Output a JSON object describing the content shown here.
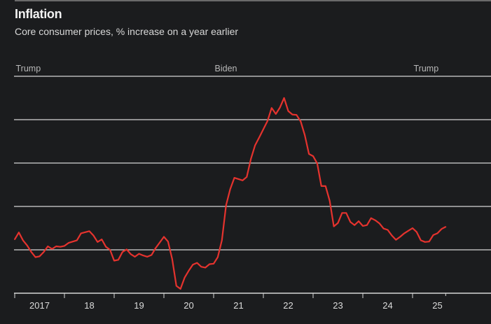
{
  "chart_data": {
    "type": "line",
    "title": "Inflation",
    "subtitle": "Core consumer prices, % increase on a year earlier",
    "xlabel": "",
    "ylabel": "",
    "ylim": [
      1,
      6
    ],
    "y_gridlines": [
      1,
      2,
      3,
      4,
      5,
      6
    ],
    "y_tick_labels_shown": false,
    "grid": true,
    "x_tick_labels": [
      "2017",
      "18",
      "19",
      "20",
      "21",
      "22",
      "23",
      "24",
      "25"
    ],
    "x_tick_years": [
      2017,
      2018,
      2019,
      2020,
      2021,
      2022,
      2023,
      2024,
      2025
    ],
    "x_end": "2025-09",
    "annotations": [
      {
        "label": "Trump",
        "date": "2017-01"
      },
      {
        "label": "Biden",
        "date": "2021-01"
      },
      {
        "label": "Trump",
        "date": "2025-01"
      }
    ],
    "line_color": "#e5332e",
    "series": [
      {
        "points": [
          [
            "2017-01",
            2.24
          ],
          [
            "2017-02",
            2.4
          ],
          [
            "2017-03",
            2.22
          ],
          [
            "2017-04",
            2.1
          ],
          [
            "2017-05",
            1.95
          ],
          [
            "2017-06",
            1.83
          ],
          [
            "2017-07",
            1.85
          ],
          [
            "2017-08",
            1.95
          ],
          [
            "2017-09",
            2.08
          ],
          [
            "2017-10",
            2.02
          ],
          [
            "2017-11",
            2.08
          ],
          [
            "2017-12",
            2.07
          ],
          [
            "2018-01",
            2.09
          ],
          [
            "2018-02",
            2.16
          ],
          [
            "2018-04",
            2.22
          ],
          [
            "2018-05",
            2.38
          ],
          [
            "2018-07",
            2.43
          ],
          [
            "2018-08",
            2.33
          ],
          [
            "2018-09",
            2.18
          ],
          [
            "2018-10",
            2.24
          ],
          [
            "2018-11",
            2.07
          ],
          [
            "2018-12",
            2.0
          ],
          [
            "2019-01",
            1.75
          ],
          [
            "2019-02",
            1.77
          ],
          [
            "2019-03",
            1.95
          ],
          [
            "2019-04",
            2.01
          ],
          [
            "2019-05",
            1.9
          ],
          [
            "2019-06",
            1.84
          ],
          [
            "2019-07",
            1.91
          ],
          [
            "2019-08",
            1.87
          ],
          [
            "2019-09",
            1.84
          ],
          [
            "2019-10",
            1.88
          ],
          [
            "2019-11",
            2.04
          ],
          [
            "2019-12",
            2.17
          ],
          [
            "2020-01",
            2.3
          ],
          [
            "2020-02",
            2.19
          ],
          [
            "2020-03",
            1.79
          ],
          [
            "2020-04",
            1.17
          ],
          [
            "2020-05",
            1.1
          ],
          [
            "2020-06",
            1.36
          ],
          [
            "2020-07",
            1.52
          ],
          [
            "2020-08",
            1.66
          ],
          [
            "2020-09",
            1.7
          ],
          [
            "2020-10",
            1.61
          ],
          [
            "2020-11",
            1.59
          ],
          [
            "2020-12",
            1.67
          ],
          [
            "2021-01",
            1.68
          ],
          [
            "2021-02",
            1.83
          ],
          [
            "2021-03",
            2.22
          ],
          [
            "2021-04",
            3.03
          ],
          [
            "2021-05",
            3.4
          ],
          [
            "2021-06",
            3.66
          ],
          [
            "2021-07",
            3.63
          ],
          [
            "2021-08",
            3.6
          ],
          [
            "2021-09",
            3.68
          ],
          [
            "2021-10",
            4.1
          ],
          [
            "2021-11",
            4.41
          ],
          [
            "2021-12",
            4.59
          ],
          [
            "2022-01",
            4.78
          ],
          [
            "2022-02",
            4.97
          ],
          [
            "2022-03",
            5.27
          ],
          [
            "2022-04",
            5.13
          ],
          [
            "2022-05",
            5.28
          ],
          [
            "2022-06",
            5.5
          ],
          [
            "2022-07",
            5.2
          ],
          [
            "2022-08",
            5.12
          ],
          [
            "2022-09",
            5.11
          ],
          [
            "2022-10",
            4.96
          ],
          [
            "2022-11",
            4.64
          ],
          [
            "2022-12",
            4.21
          ],
          [
            "2023-01",
            4.16
          ],
          [
            "2023-02",
            3.99
          ],
          [
            "2023-03",
            3.47
          ],
          [
            "2023-04",
            3.47
          ],
          [
            "2023-05",
            3.13
          ],
          [
            "2023-06",
            2.54
          ],
          [
            "2023-07",
            2.62
          ],
          [
            "2023-08",
            2.85
          ],
          [
            "2023-09",
            2.85
          ],
          [
            "2023-10",
            2.64
          ],
          [
            "2023-11",
            2.57
          ],
          [
            "2023-12",
            2.66
          ],
          [
            "2024-01",
            2.55
          ],
          [
            "2024-02",
            2.57
          ],
          [
            "2024-03",
            2.73
          ],
          [
            "2024-04",
            2.68
          ],
          [
            "2024-05",
            2.61
          ],
          [
            "2024-06",
            2.49
          ],
          [
            "2024-07",
            2.46
          ],
          [
            "2024-08",
            2.33
          ],
          [
            "2024-09",
            2.23
          ],
          [
            "2024-10",
            2.3
          ],
          [
            "2024-11",
            2.38
          ],
          [
            "2024-12",
            2.44
          ],
          [
            "2025-01",
            2.5
          ],
          [
            "2025-02",
            2.41
          ],
          [
            "2025-03",
            2.22
          ],
          [
            "2025-04",
            2.18
          ],
          [
            "2025-05",
            2.19
          ],
          [
            "2025-06",
            2.34
          ],
          [
            "2025-07",
            2.38
          ],
          [
            "2025-08",
            2.48
          ],
          [
            "2025-09",
            2.53
          ]
        ]
      }
    ]
  }
}
